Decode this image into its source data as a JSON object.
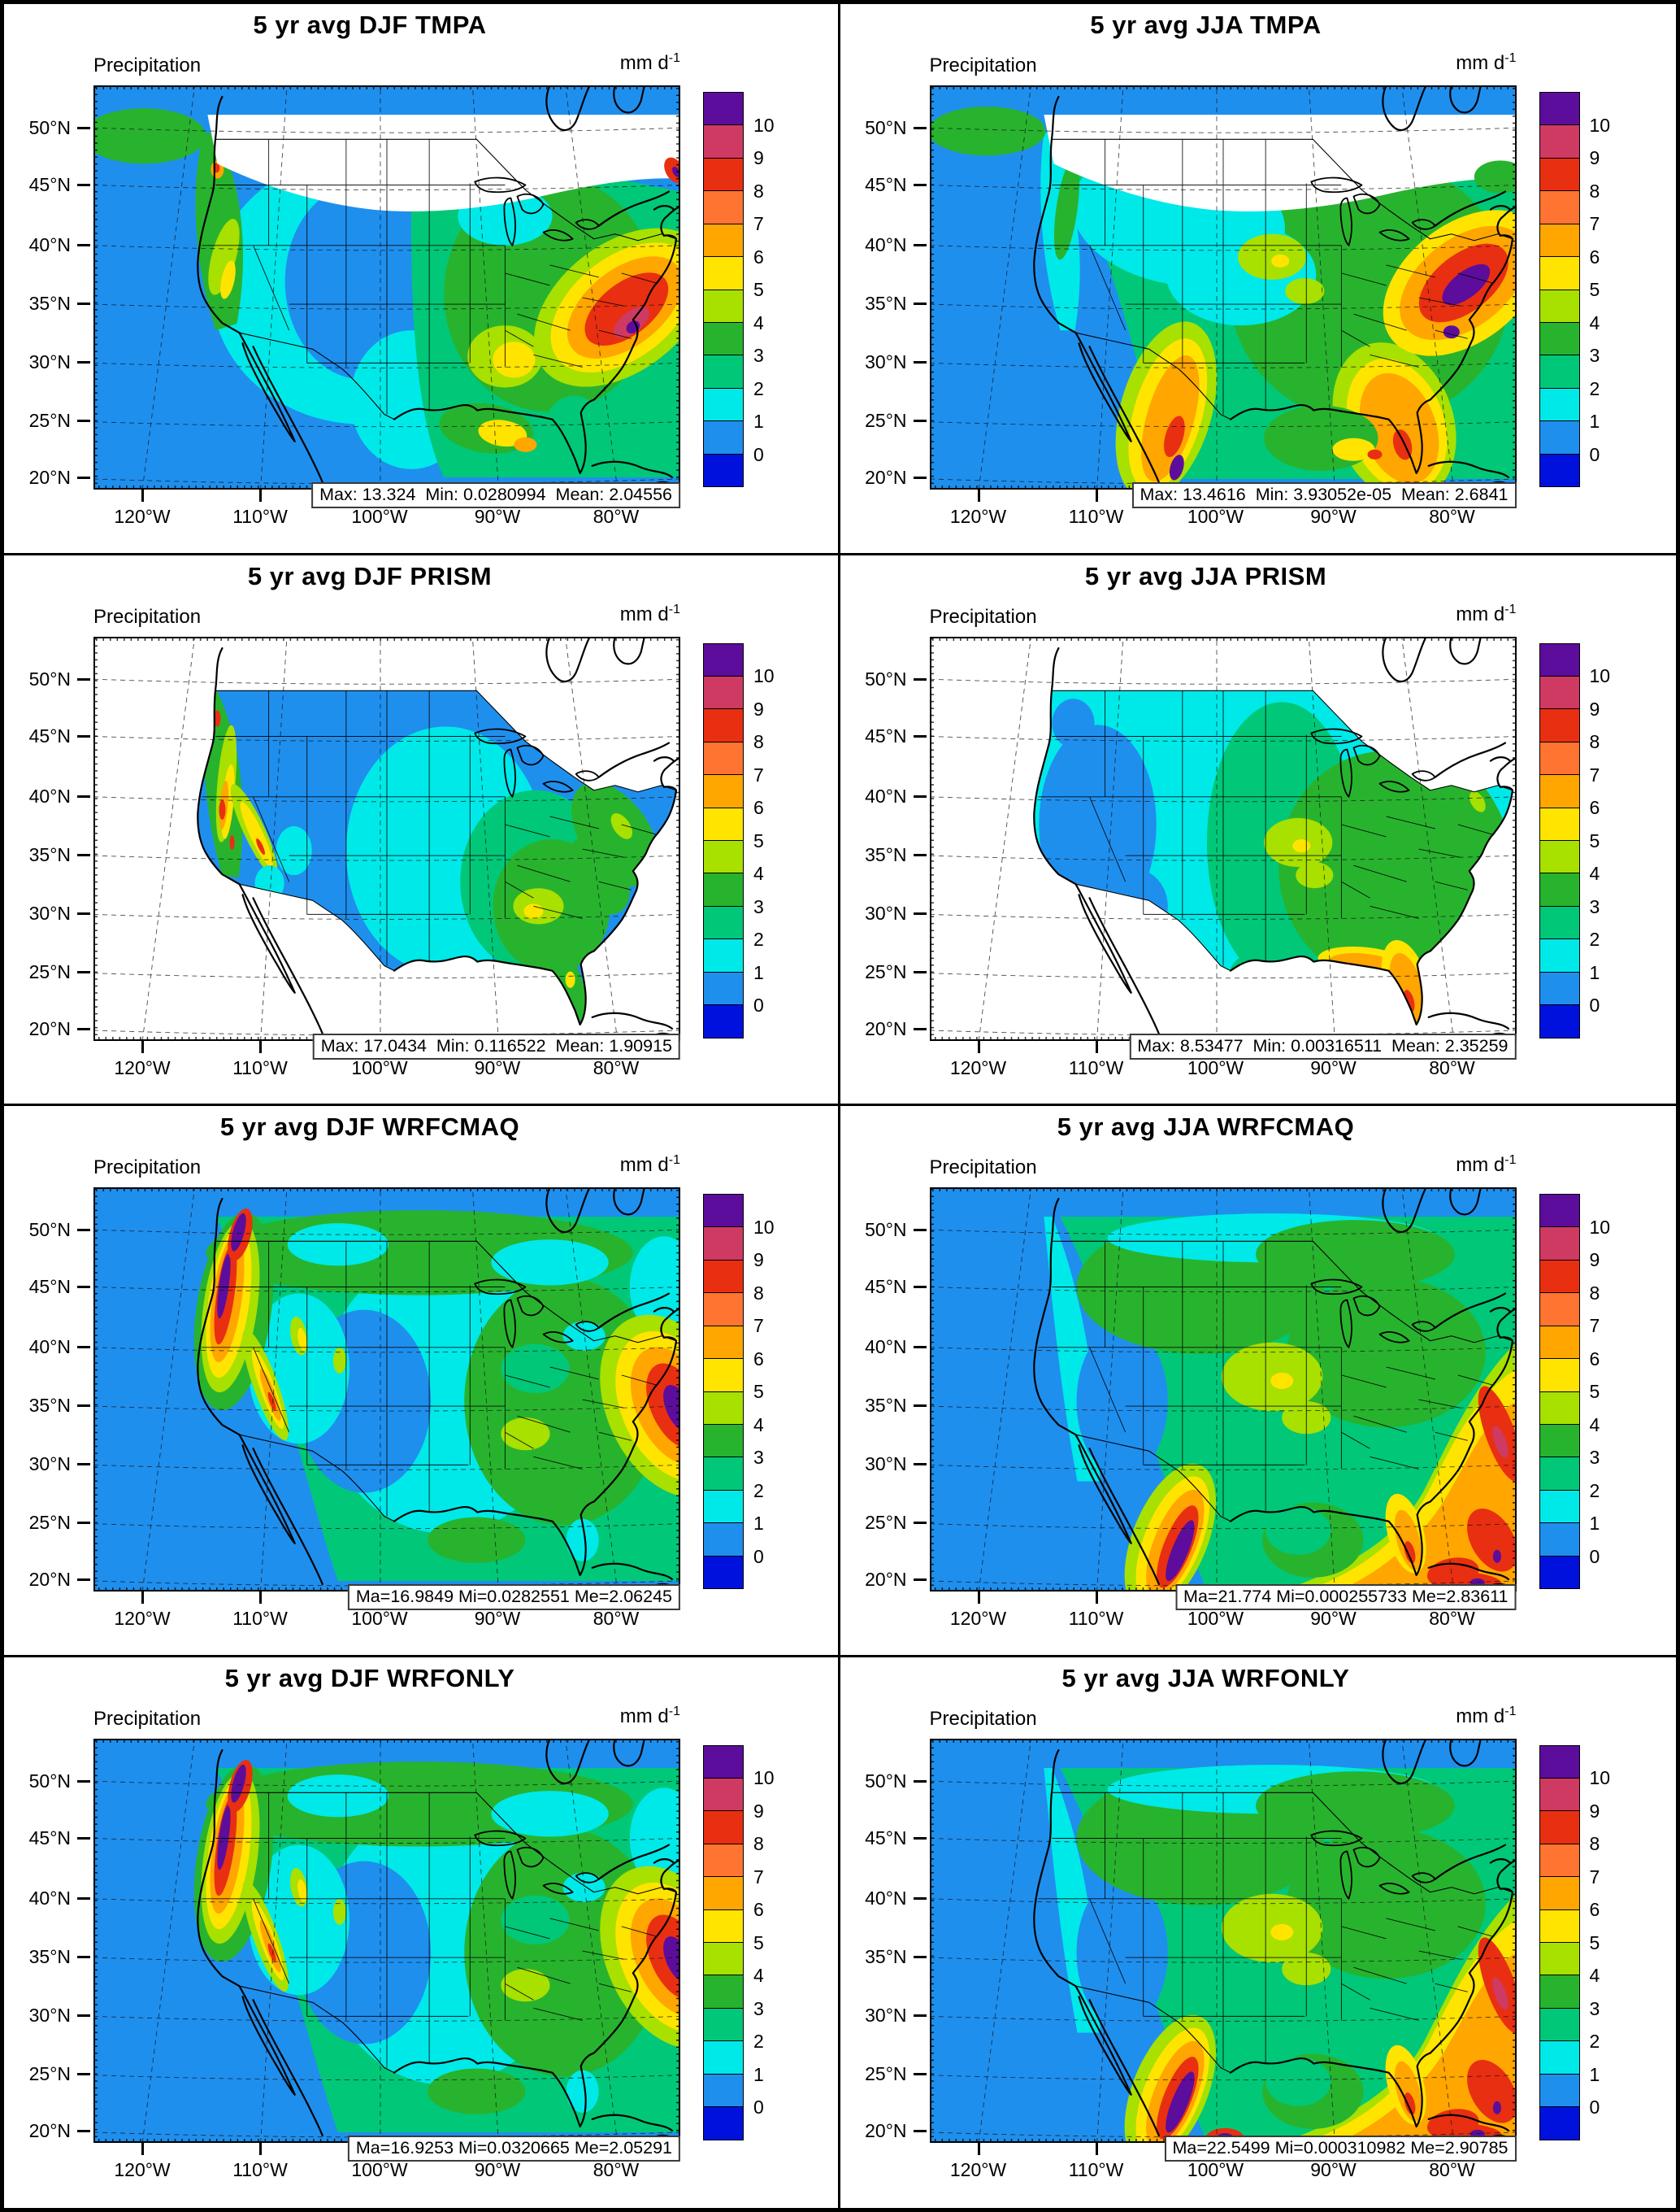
{
  "figure": {
    "field_label": "Precipitation",
    "units_label": "mm d",
    "units_exponent": "-1",
    "y_axis_ticks": [
      "50°N",
      "45°N",
      "40°N",
      "35°N",
      "30°N",
      "25°N",
      "20°N"
    ],
    "x_axis_ticks": [
      "120°W",
      "110°W",
      "100°W",
      "90°W",
      "80°W"
    ],
    "colorbar": {
      "tick_labels": [
        "10",
        "9",
        "8",
        "7",
        "6",
        "5",
        "4",
        "3",
        "2",
        "1",
        "0"
      ],
      "colors": [
        "#5c0d9b",
        "#cf3a63",
        "#e92f11",
        "#ff7430",
        "#ffa600",
        "#ffe400",
        "#a8e000",
        "#28b32e",
        "#00c878",
        "#00e9e9",
        "#1f8fee",
        "#0011dd"
      ]
    }
  },
  "panels": [
    {
      "title": "5 yr avg DJF TMPA",
      "stats": "Max: 13.324  Min: 0.0280994  Mean: 2.04556",
      "style": "tmpa-djf"
    },
    {
      "title": "5 yr avg JJA TMPA",
      "stats": "Max: 13.4616  Min: 3.93052e-05  Mean: 2.6841",
      "style": "tmpa-jja"
    },
    {
      "title": "5 yr avg DJF PRISM",
      "stats": "Max: 17.0434  Min: 0.116522  Mean: 1.90915",
      "style": "prism-djf"
    },
    {
      "title": "5 yr avg JJA PRISM",
      "stats": "Max: 8.53477  Min: 0.00316511  Mean: 2.35259",
      "style": "prism-jja"
    },
    {
      "title": "5 yr avg DJF WRFCMAQ",
      "stats": "Ma=16.9849 Mi=0.0282551 Me=2.06245",
      "style": "wrf-djf"
    },
    {
      "title": "5 yr avg JJA WRFCMAQ",
      "stats": "Ma=21.774 Mi=0.000255733 Me=2.83611",
      "style": "wrf-jja"
    },
    {
      "title": "5 yr avg DJF WRFONLY",
      "stats": "Ma=16.9253 Mi=0.0320665 Me=2.05291",
      "style": "wrfonly-djf"
    },
    {
      "title": "5 yr avg JJA WRFONLY",
      "stats": "Ma=22.5499 Mi=0.000310982 Me=2.90785",
      "style": "wrfonly-jja"
    }
  ],
  "chart_data": [
    {
      "type": "heatmap",
      "title": "5 yr avg DJF TMPA",
      "variable": "Precipitation",
      "units": "mm d^-1",
      "season": "DJF",
      "dataset": "TMPA",
      "stats": {
        "max": 13.324,
        "min": 0.0280994,
        "mean": 2.04556
      },
      "colorbar_levels": [
        0,
        1,
        2,
        3,
        4,
        5,
        6,
        7,
        8,
        9,
        10
      ],
      "lat_ticks_deg_n": [
        20,
        25,
        30,
        35,
        40,
        45,
        50
      ],
      "lon_ticks_deg_w": [
        120,
        110,
        100,
        90,
        80
      ]
    },
    {
      "type": "heatmap",
      "title": "5 yr avg JJA TMPA",
      "variable": "Precipitation",
      "units": "mm d^-1",
      "season": "JJA",
      "dataset": "TMPA",
      "stats": {
        "max": 13.4616,
        "min": 3.93052e-05,
        "mean": 2.6841
      },
      "colorbar_levels": [
        0,
        1,
        2,
        3,
        4,
        5,
        6,
        7,
        8,
        9,
        10
      ],
      "lat_ticks_deg_n": [
        20,
        25,
        30,
        35,
        40,
        45,
        50
      ],
      "lon_ticks_deg_w": [
        120,
        110,
        100,
        90,
        80
      ]
    },
    {
      "type": "heatmap",
      "title": "5 yr avg DJF PRISM",
      "variable": "Precipitation",
      "units": "mm d^-1",
      "season": "DJF",
      "dataset": "PRISM",
      "stats": {
        "max": 17.0434,
        "min": 0.116522,
        "mean": 1.90915
      },
      "colorbar_levels": [
        0,
        1,
        2,
        3,
        4,
        5,
        6,
        7,
        8,
        9,
        10
      ],
      "lat_ticks_deg_n": [
        20,
        25,
        30,
        35,
        40,
        45,
        50
      ],
      "lon_ticks_deg_w": [
        120,
        110,
        100,
        90,
        80
      ]
    },
    {
      "type": "heatmap",
      "title": "5 yr avg JJA PRISM",
      "variable": "Precipitation",
      "units": "mm d^-1",
      "season": "JJA",
      "dataset": "PRISM",
      "stats": {
        "max": 8.53477,
        "min": 0.00316511,
        "mean": 2.35259
      },
      "colorbar_levels": [
        0,
        1,
        2,
        3,
        4,
        5,
        6,
        7,
        8,
        9,
        10
      ],
      "lat_ticks_deg_n": [
        20,
        25,
        30,
        35,
        40,
        45,
        50
      ],
      "lon_ticks_deg_w": [
        120,
        110,
        100,
        90,
        80
      ]
    },
    {
      "type": "heatmap",
      "title": "5 yr avg DJF WRFCMAQ",
      "variable": "Precipitation",
      "units": "mm d^-1",
      "season": "DJF",
      "dataset": "WRFCMAQ",
      "stats": {
        "max": 16.9849,
        "min": 0.0282551,
        "mean": 2.06245
      },
      "colorbar_levels": [
        0,
        1,
        2,
        3,
        4,
        5,
        6,
        7,
        8,
        9,
        10
      ],
      "lat_ticks_deg_n": [
        20,
        25,
        30,
        35,
        40,
        45,
        50
      ],
      "lon_ticks_deg_w": [
        120,
        110,
        100,
        90,
        80
      ]
    },
    {
      "type": "heatmap",
      "title": "5 yr avg JJA WRFCMAQ",
      "variable": "Precipitation",
      "units": "mm d^-1",
      "season": "JJA",
      "dataset": "WRFCMAQ",
      "stats": {
        "max": 21.774,
        "min": 0.000255733,
        "mean": 2.83611
      },
      "colorbar_levels": [
        0,
        1,
        2,
        3,
        4,
        5,
        6,
        7,
        8,
        9,
        10
      ],
      "lat_ticks_deg_n": [
        20,
        25,
        30,
        35,
        40,
        45,
        50
      ],
      "lon_ticks_deg_w": [
        120,
        110,
        100,
        90,
        80
      ]
    },
    {
      "type": "heatmap",
      "title": "5 yr avg DJF WRFONLY",
      "variable": "Precipitation",
      "units": "mm d^-1",
      "season": "DJF",
      "dataset": "WRFONLY",
      "stats": {
        "max": 16.9253,
        "min": 0.0320665,
        "mean": 2.05291
      },
      "colorbar_levels": [
        0,
        1,
        2,
        3,
        4,
        5,
        6,
        7,
        8,
        9,
        10
      ],
      "lat_ticks_deg_n": [
        20,
        25,
        30,
        35,
        40,
        45,
        50
      ],
      "lon_ticks_deg_w": [
        120,
        110,
        100,
        90,
        80
      ]
    },
    {
      "type": "heatmap",
      "title": "5 yr avg JJA WRFONLY",
      "variable": "Precipitation",
      "units": "mm d^-1",
      "season": "JJA",
      "dataset": "WRFONLY",
      "stats": {
        "max": 22.5499,
        "min": 0.000310982,
        "mean": 2.90785
      },
      "colorbar_levels": [
        0,
        1,
        2,
        3,
        4,
        5,
        6,
        7,
        8,
        9,
        10
      ],
      "lat_ticks_deg_n": [
        20,
        25,
        30,
        35,
        40,
        45,
        50
      ],
      "lon_ticks_deg_w": [
        120,
        110,
        100,
        90,
        80
      ]
    }
  ]
}
